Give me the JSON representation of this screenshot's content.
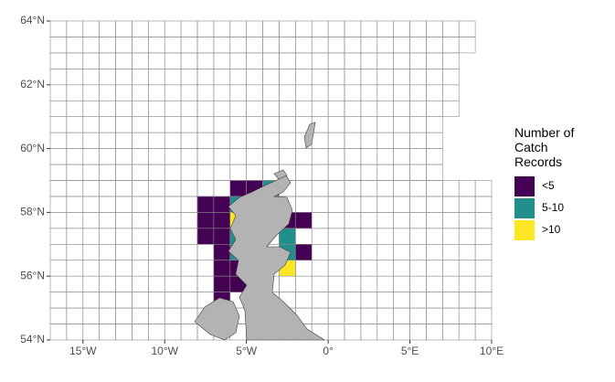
{
  "chart_data": {
    "type": "grid-map",
    "xlim": [
      -17,
      10
    ],
    "ylim": [
      54,
      64
    ],
    "xticks": [
      {
        "value": -15,
        "label": "15°W"
      },
      {
        "value": -10,
        "label": "10°W"
      },
      {
        "value": -5,
        "label": "5°W"
      },
      {
        "value": 0,
        "label": "0°"
      },
      {
        "value": 5,
        "label": "5°E"
      },
      {
        "value": 10,
        "label": "10°E"
      }
    ],
    "yticks": [
      {
        "value": 54,
        "label": "54°N"
      },
      {
        "value": 56,
        "label": "56°N"
      },
      {
        "value": 58,
        "label": "58°N"
      },
      {
        "value": 60,
        "label": "60°N"
      },
      {
        "value": 62,
        "label": "62°N"
      },
      {
        "value": 64,
        "label": "64°N"
      }
    ],
    "legend": {
      "title": "Number of Catch Records",
      "categories": [
        {
          "label": "<5",
          "color": "#440154"
        },
        {
          "label": "5-10",
          "color": "#21908C"
        },
        {
          "label": ">10",
          "color": "#FDE725"
        }
      ]
    },
    "cells": [
      [
        -6,
        58.5,
        0
      ],
      [
        -5,
        58.5,
        0
      ],
      [
        -4,
        58.5,
        1
      ],
      [
        -8,
        58,
        0
      ],
      [
        -7,
        58,
        0
      ],
      [
        -6,
        58,
        1
      ],
      [
        -8,
        57.5,
        0
      ],
      [
        -7,
        57.5,
        0
      ],
      [
        -6,
        57.5,
        2
      ],
      [
        -4,
        57.5,
        0
      ],
      [
        -3,
        57.5,
        0
      ],
      [
        -2,
        57.5,
        0
      ],
      [
        -8,
        57,
        0
      ],
      [
        -7,
        57,
        0
      ],
      [
        -6,
        57,
        1
      ],
      [
        -3,
        57,
        1
      ],
      [
        -7,
        56.5,
        0
      ],
      [
        -6,
        56.5,
        1
      ],
      [
        -3,
        56.5,
        1
      ],
      [
        -2,
        56.5,
        0
      ],
      [
        -7,
        56,
        0
      ],
      [
        -6,
        56,
        0
      ],
      [
        -3,
        56,
        2
      ],
      [
        -7,
        55.5,
        0
      ],
      [
        -6,
        55.5,
        0
      ],
      [
        -7,
        55,
        0
      ]
    ]
  }
}
